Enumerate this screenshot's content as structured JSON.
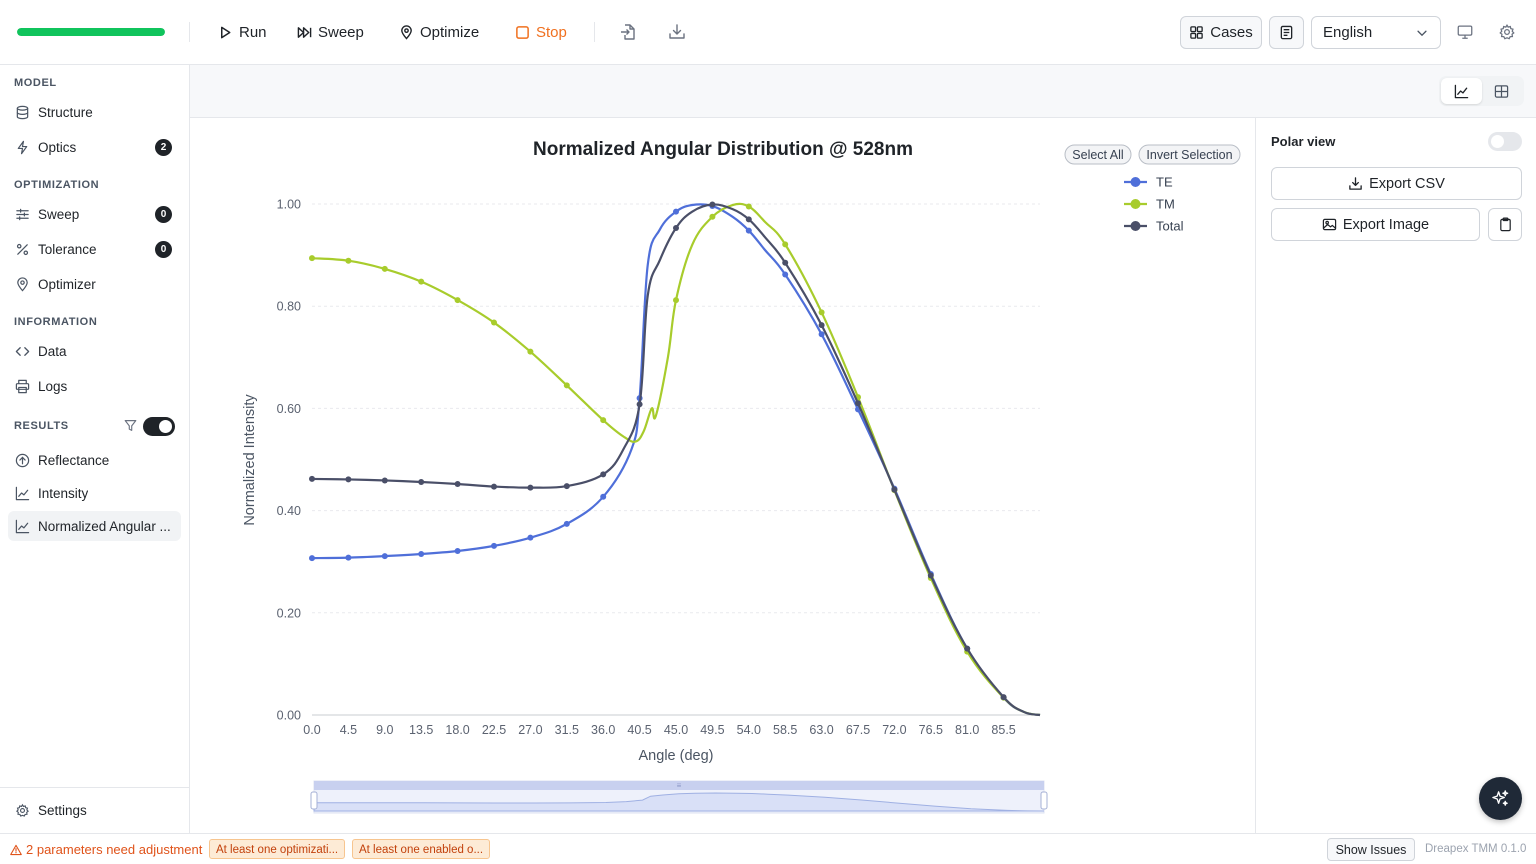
{
  "toolbar": {
    "progress": 1.0,
    "run_label": "Run",
    "sweep_label": "Sweep",
    "optimize_label": "Optimize",
    "stop_label": "Stop",
    "cases_label": "Cases",
    "language": "English"
  },
  "sidebar": {
    "sections": {
      "model": "MODEL",
      "optimization": "OPTIMIZATION",
      "information": "INFORMATION",
      "results": "RESULTS"
    },
    "items": [
      {
        "label": "Structure",
        "icon": "database-icon"
      },
      {
        "label": "Optics",
        "icon": "bolt-icon",
        "badge": "2"
      },
      {
        "label": "Sweep",
        "icon": "sliders-icon",
        "badge": "0"
      },
      {
        "label": "Tolerance",
        "icon": "percent-icon",
        "badge": "0"
      },
      {
        "label": "Optimizer",
        "icon": "map-pin-icon"
      },
      {
        "label": "Data",
        "icon": "code-icon"
      },
      {
        "label": "Logs",
        "icon": "printer-icon"
      },
      {
        "label": "Reflectance",
        "icon": "arrow-up-circle-icon"
      },
      {
        "label": "Intensity",
        "icon": "line-chart-icon"
      },
      {
        "label": "Normalized Angular ...",
        "icon": "line-chart-icon"
      }
    ],
    "results_filter_enabled": true,
    "settings_label": "Settings"
  },
  "right_panel": {
    "polar_label": "Polar view",
    "polar_enabled": false,
    "export_csv_label": "Export CSV",
    "export_image_label": "Export Image"
  },
  "chart_controls": {
    "select_all_label": "Select All",
    "invert_selection_label": "Invert Selection"
  },
  "status": {
    "warning_text": "2 parameters need adjustment",
    "chips": [
      "At least one optimizati...",
      "At least one enabled o..."
    ],
    "show_issues_label": "Show Issues",
    "version": "Dreapex TMM 0.1.0"
  },
  "chart_data": {
    "type": "line",
    "title": "Normalized Angular Distribution @ 528nm",
    "xlabel": "Angle (deg)",
    "ylabel": "Normalized Intensity",
    "xlim": [
      0,
      90
    ],
    "ylim": [
      0,
      1.0
    ],
    "xticks": [
      "0.0",
      "4.5",
      "9.0",
      "13.5",
      "18.0",
      "22.5",
      "27.0",
      "31.5",
      "36.0",
      "40.5",
      "45.0",
      "49.5",
      "54.0",
      "58.5",
      "63.0",
      "67.5",
      "72.0",
      "76.5",
      "81.0",
      "85.5"
    ],
    "yticks": [
      "0.00",
      "0.20",
      "0.40",
      "0.60",
      "0.80",
      "1.00"
    ],
    "legend_position": "top-right",
    "series": [
      {
        "name": "TE",
        "color": "#4f6fd9",
        "points": [
          [
            0,
            0.307
          ],
          [
            4.5,
            0.308
          ],
          [
            9,
            0.311
          ],
          [
            13.5,
            0.315
          ],
          [
            18,
            0.321
          ],
          [
            22.5,
            0.331
          ],
          [
            27,
            0.347
          ],
          [
            31.5,
            0.374
          ],
          [
            36,
            0.427
          ],
          [
            39.5,
            0.52
          ],
          [
            40.5,
            0.62
          ],
          [
            41.5,
            0.88
          ],
          [
            43,
            0.95
          ],
          [
            45,
            0.985
          ],
          [
            47,
            0.998
          ],
          [
            49.5,
            0.996
          ],
          [
            52,
            0.975
          ],
          [
            54,
            0.948
          ],
          [
            56,
            0.91
          ],
          [
            58.5,
            0.862
          ],
          [
            63,
            0.745
          ],
          [
            67.5,
            0.598
          ],
          [
            72,
            0.443
          ],
          [
            76.5,
            0.276
          ],
          [
            81,
            0.13
          ],
          [
            85.5,
            0.034
          ],
          [
            88,
            0.006
          ],
          [
            90,
            0.0
          ]
        ]
      },
      {
        "name": "TM",
        "color": "#a8cc2c",
        "points": [
          [
            0,
            0.894
          ],
          [
            4.5,
            0.889
          ],
          [
            9,
            0.873
          ],
          [
            13.5,
            0.848
          ],
          [
            18,
            0.812
          ],
          [
            22.5,
            0.768
          ],
          [
            27,
            0.711
          ],
          [
            31.5,
            0.645
          ],
          [
            36,
            0.577
          ],
          [
            38.5,
            0.545
          ],
          [
            40,
            0.535
          ],
          [
            41,
            0.555
          ],
          [
            42,
            0.6
          ],
          [
            42.5,
            0.585
          ],
          [
            44,
            0.7
          ],
          [
            45,
            0.812
          ],
          [
            47,
            0.92
          ],
          [
            49.5,
            0.975
          ],
          [
            52,
            0.998
          ],
          [
            54,
            0.995
          ],
          [
            56,
            0.965
          ],
          [
            58.5,
            0.921
          ],
          [
            63,
            0.788
          ],
          [
            67.5,
            0.622
          ],
          [
            72,
            0.44
          ],
          [
            76.5,
            0.268
          ],
          [
            81,
            0.124
          ],
          [
            85.5,
            0.034
          ],
          [
            88,
            0.006
          ],
          [
            90,
            0.0
          ]
        ]
      },
      {
        "name": "Total",
        "color": "#4a4f68",
        "points": [
          [
            0,
            0.462
          ],
          [
            4.5,
            0.461
          ],
          [
            9,
            0.459
          ],
          [
            13.5,
            0.456
          ],
          [
            18,
            0.452
          ],
          [
            22.5,
            0.447
          ],
          [
            27,
            0.445
          ],
          [
            31.5,
            0.448
          ],
          [
            36,
            0.471
          ],
          [
            38.5,
            0.52
          ],
          [
            40.5,
            0.608
          ],
          [
            41.5,
            0.82
          ],
          [
            43,
            0.89
          ],
          [
            45,
            0.953
          ],
          [
            47,
            0.985
          ],
          [
            49.5,
            0.999
          ],
          [
            52,
            0.99
          ],
          [
            54,
            0.97
          ],
          [
            56,
            0.935
          ],
          [
            58.5,
            0.885
          ],
          [
            63,
            0.763
          ],
          [
            67.5,
            0.61
          ],
          [
            72,
            0.441
          ],
          [
            76.5,
            0.273
          ],
          [
            81,
            0.13
          ],
          [
            85.5,
            0.035
          ],
          [
            88,
            0.006
          ],
          [
            90,
            0.0
          ]
        ]
      }
    ]
  }
}
